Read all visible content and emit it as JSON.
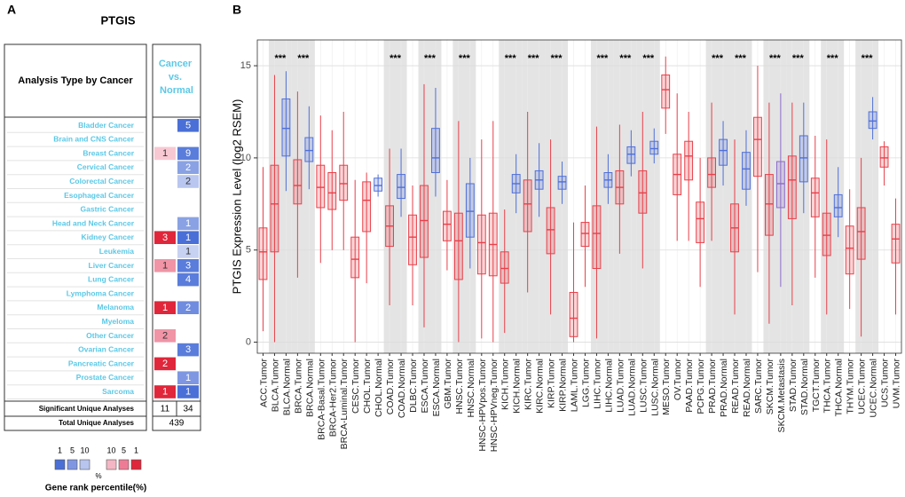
{
  "panel_a": {
    "label": "A",
    "title": "PTGIS",
    "row_header": "Analysis Type by Cancer",
    "column_header": "Cancer vs. Normal",
    "name_color": "#5bc8e6",
    "rows": [
      {
        "name": "Bladder Cancer",
        "up": null,
        "down": 5,
        "up_color": null,
        "down_color": "#4a6fd6"
      },
      {
        "name": "Brain and CNS Cancer",
        "up": null,
        "down": null,
        "up_color": null,
        "down_color": null
      },
      {
        "name": "Breast Cancer",
        "up": 1,
        "down": 9,
        "up_color": "#f8c8d2",
        "down_color": "#5a7ddb"
      },
      {
        "name": "Cervical Cancer",
        "up": null,
        "down": 2,
        "up_color": null,
        "down_color": "#8aa2e3"
      },
      {
        "name": "Colorectal Cancer",
        "up": null,
        "down": 2,
        "up_color": null,
        "down_color": "#b9c6ef"
      },
      {
        "name": "Esophageal Cancer",
        "up": null,
        "down": null,
        "up_color": null,
        "down_color": null
      },
      {
        "name": "Gastric Cancer",
        "up": null,
        "down": null,
        "up_color": null,
        "down_color": null
      },
      {
        "name": "Head and Neck Cancer",
        "up": null,
        "down": 1,
        "up_color": null,
        "down_color": "#8aa2e3"
      },
      {
        "name": "Kidney Cancer",
        "up": 3,
        "down": 1,
        "up_color": "#e0263a",
        "down_color": "#4a6fd6"
      },
      {
        "name": "Leukemia",
        "up": null,
        "down": 1,
        "up_color": null,
        "down_color": "#c7d2f2"
      },
      {
        "name": "Liver Cancer",
        "up": 1,
        "down": 3,
        "up_color": "#f094a6",
        "down_color": "#5a7ddb"
      },
      {
        "name": "Lung Cancer",
        "up": null,
        "down": 4,
        "up_color": null,
        "down_color": "#5a7ddb"
      },
      {
        "name": "Lymphoma Cancer",
        "up": null,
        "down": null,
        "up_color": null,
        "down_color": null
      },
      {
        "name": "Melanoma",
        "up": 1,
        "down": 2,
        "up_color": "#e0263a",
        "down_color": "#6f8cdf"
      },
      {
        "name": "Myeloma",
        "up": null,
        "down": null,
        "up_color": null,
        "down_color": null
      },
      {
        "name": "Other Cancer",
        "up": 2,
        "down": null,
        "up_color": "#f094a6",
        "down_color": null
      },
      {
        "name": "Ovarian Cancer",
        "up": null,
        "down": 3,
        "up_color": null,
        "down_color": "#5a7ddb"
      },
      {
        "name": "Pancreatic Cancer",
        "up": 2,
        "down": null,
        "up_color": "#e0263a",
        "down_color": null
      },
      {
        "name": "Prostate Cancer",
        "up": null,
        "down": 1,
        "up_color": null,
        "down_color": "#7f97e2"
      },
      {
        "name": "Sarcoma",
        "up": 1,
        "down": 1,
        "up_color": "#e0263a",
        "down_color": "#4a6fd6"
      }
    ],
    "significant_label": "Significant Unique Analyses",
    "significant_up": 11,
    "significant_down": 34,
    "total_label": "Total Unique Analyses",
    "total": 439,
    "legend": {
      "blue_labels": [
        1,
        5,
        10
      ],
      "blue_colors": [
        "#4a6fd6",
        "#7f97e2",
        "#b7c5ef"
      ],
      "unit": "%",
      "red_labels": [
        10,
        5,
        1
      ],
      "red_colors": [
        "#f4b6c4",
        "#ee7b95",
        "#e0263a"
      ],
      "title": "Gene rank percentile(%)"
    }
  },
  "chart_data": {
    "type": "box",
    "panel_label": "B",
    "ylabel": "PTGIS Expression Level (log2 RSEM)",
    "categories": [
      "ACC.Tumor",
      "BLCA.Tumor",
      "BLCA.Normal",
      "BRCA.Tumor",
      "BRCA.Normal",
      "BRCA-Basal.Tumor",
      "BRCA-Her2.Tumor",
      "BRCA-Luminal.Tumor",
      "CESC.Tumor",
      "CHOL.Tumor",
      "CHOL.Normal",
      "COAD.Tumor",
      "COAD.Normal",
      "DLBC.Tumor",
      "ESCA.Tumor",
      "ESCA.Normal",
      "GBM.Tumor",
      "HNSC.Tumor",
      "HNSC.Normal",
      "HNSC-HPVpos.Tumor",
      "HNSC-HPVneg.Tumor",
      "KICH.Tumor",
      "KICH.Normal",
      "KIRC.Tumor",
      "KIRC.Normal",
      "KIRP.Tumor",
      "KIRP.Normal",
      "LAML.Tumor",
      "LGG.Tumor",
      "LIHC.Tumor",
      "LIHC.Normal",
      "LUAD.Tumor",
      "LUAD.Normal",
      "LUSC.Tumor",
      "LUSC.Normal",
      "MESO.Tumor",
      "OV.Tumor",
      "PAAD.Tumor",
      "PCPG.Tumor",
      "PRAD.Tumor",
      "PRAD.Normal",
      "READ.Tumor",
      "READ.Normal",
      "SARC.Tumor",
      "SKCM.Tumor",
      "SKCM.Metastasis",
      "STAD.Tumor",
      "STAD.Normal",
      "TGCT.Tumor",
      "THCA.Tumor",
      "THCA.Normal",
      "THYM.Tumor",
      "UCEC.Tumor",
      "UCEC.Normal",
      "UCS.Tumor",
      "UVM.Tumor"
    ],
    "whisker_low": [
      0.6,
      0,
      8.2,
      3.5,
      8.3,
      4.3,
      5,
      5,
      0,
      3.2,
      7.9,
      2,
      6.8,
      2,
      0.8,
      7.9,
      3.9,
      0,
      4,
      0.2,
      0,
      0.5,
      7,
      2.7,
      6.8,
      1.5,
      7.5,
      0,
      3,
      0.2,
      7.5,
      4.8,
      9,
      4,
      9.7,
      11.3,
      5.5,
      5.5,
      3,
      5.5,
      8.5,
      1.5,
      7.4,
      3.8,
      1,
      3,
      2,
      7,
      3.5,
      1.5,
      5.7,
      1.8,
      0.3,
      11,
      8.5,
      1.5
    ],
    "q1": [
      3.4,
      4.9,
      10.1,
      7.5,
      9.8,
      7.3,
      7.2,
      7.7,
      3.5,
      6,
      8.2,
      5.2,
      7.8,
      4.2,
      4.6,
      9.2,
      5.5,
      3.4,
      5.7,
      3.7,
      3.6,
      3.2,
      8.1,
      6,
      8.3,
      4.8,
      8.3,
      0.3,
      5.2,
      4,
      8.4,
      7.5,
      9.7,
      7,
      10.2,
      12.7,
      8,
      8.8,
      5.4,
      8.4,
      9.6,
      4.9,
      8.3,
      9,
      5.8,
      7.3,
      6.7,
      8.7,
      6.8,
      4.7,
      6.8,
      3.7,
      4.5,
      11.6,
      9.5,
      4.3
    ],
    "median": [
      4.9,
      7.5,
      11.6,
      8.5,
      10.4,
      8.4,
      8.1,
      8.6,
      4.5,
      7.7,
      8.5,
      6.3,
      8.4,
      5.7,
      6.6,
      10,
      6.4,
      5.5,
      7.1,
      5.4,
      5.3,
      4,
      8.6,
      7.5,
      8.8,
      6.1,
      8.7,
      1.3,
      5.9,
      5.9,
      8.8,
      8.4,
      10.2,
      8.1,
      10.5,
      13.7,
      9.1,
      10.1,
      6.7,
      9.1,
      10.4,
      6.2,
      9.4,
      11,
      7.5,
      8.6,
      8.8,
      10,
      8.1,
      5.8,
      7.3,
      5.1,
      6,
      12,
      10,
      5.6
    ],
    "q3": [
      6.2,
      9.6,
      13.2,
      9.9,
      11.1,
      9.6,
      9.2,
      9.6,
      5.7,
      8.7,
      8.9,
      7.4,
      9.1,
      6.9,
      8.5,
      11.6,
      7.1,
      7,
      8.6,
      6.9,
      7,
      4.9,
      9.1,
      8.8,
      9.3,
      7.3,
      9,
      2.7,
      6.5,
      7.4,
      9.2,
      9.3,
      10.6,
      9.3,
      10.9,
      14.5,
      10.2,
      10.9,
      7.6,
      10,
      11,
      7.5,
      10.3,
      12.2,
      9.1,
      9.8,
      10.1,
      11.2,
      8.9,
      7,
      8,
      6.3,
      7.3,
      12.5,
      10.6,
      6.4
    ],
    "whisker_high": [
      9.5,
      14.5,
      14.7,
      13.6,
      12.8,
      12.3,
      11.5,
      12.5,
      8.8,
      9.2,
      9.1,
      10.5,
      10.5,
      8.5,
      14,
      13.8,
      8.8,
      12,
      10,
      11,
      12,
      7.2,
      10.2,
      12.5,
      10.8,
      11,
      9.8,
      6.5,
      8.5,
      11.7,
      10.2,
      11.8,
      11.5,
      12.5,
      11.6,
      15.5,
      13.5,
      12.5,
      10,
      13,
      12,
      11,
      11.5,
      15,
      13,
      13.5,
      13,
      13,
      11.2,
      11,
      9.5,
      8.3,
      10,
      13.3,
      10.9,
      7.8
    ],
    "colors": [
      "#e8404a",
      "#e8404a",
      "#4f6fd9",
      "#e8404a",
      "#4f6fd9",
      "#e8404a",
      "#e8404a",
      "#e8404a",
      "#e8404a",
      "#e8404a",
      "#4f6fd9",
      "#e8404a",
      "#4f6fd9",
      "#e8404a",
      "#e8404a",
      "#4f6fd9",
      "#e8404a",
      "#e8404a",
      "#4f6fd9",
      "#e8404a",
      "#e8404a",
      "#e8404a",
      "#4f6fd9",
      "#e8404a",
      "#4f6fd9",
      "#e8404a",
      "#4f6fd9",
      "#e8404a",
      "#e8404a",
      "#e8404a",
      "#4f6fd9",
      "#e8404a",
      "#4f6fd9",
      "#e8404a",
      "#4f6fd9",
      "#e8404a",
      "#e8404a",
      "#e8404a",
      "#e8404a",
      "#e8404a",
      "#4f6fd9",
      "#e8404a",
      "#4f6fd9",
      "#e8404a",
      "#e8404a",
      "#8b6ac9",
      "#e8404a",
      "#4f6fd9",
      "#e8404a",
      "#e8404a",
      "#4f6fd9",
      "#e8404a",
      "#e8404a",
      "#4f6fd9",
      "#e8404a",
      "#e8404a"
    ],
    "significance_labels": [
      null,
      null,
      "***",
      null,
      "***",
      null,
      null,
      null,
      null,
      null,
      null,
      null,
      "***",
      null,
      null,
      "***",
      null,
      null,
      "***",
      null,
      null,
      null,
      "***",
      null,
      "***",
      null,
      "***",
      null,
      null,
      null,
      "***",
      null,
      "***",
      null,
      "***",
      null,
      null,
      null,
      null,
      null,
      "***",
      null,
      "***",
      null,
      null,
      "***",
      null,
      "***",
      null,
      null,
      "***",
      null,
      null,
      "***",
      null,
      null
    ],
    "ylim": [
      -0.6,
      16.4
    ],
    "yticks": [
      0,
      5,
      10,
      15
    ],
    "grid": true
  }
}
